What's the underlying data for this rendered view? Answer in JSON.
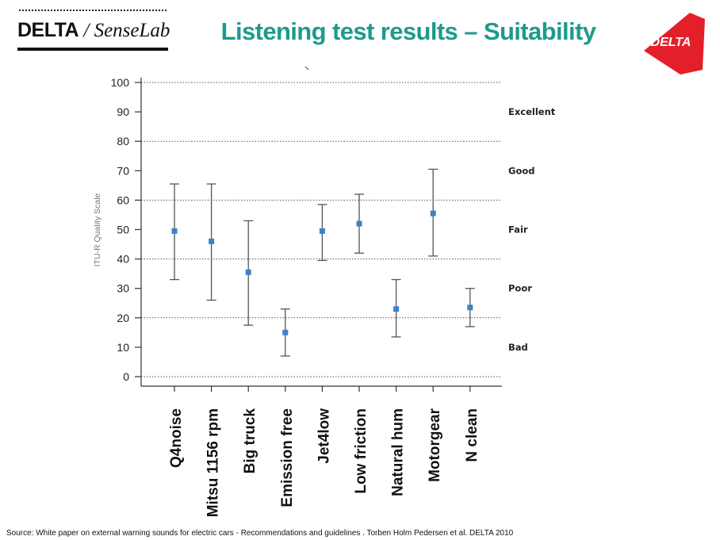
{
  "header": {
    "logo_left_bold": "DELTA",
    "logo_left_italic": " / SenseLab",
    "title": "Listening test results – Suitability",
    "logo_right_text": "DELTA"
  },
  "colors": {
    "title": "#1e9a8c",
    "marker": "#3b83c4",
    "logo_red": "#e3202a"
  },
  "chart_data": {
    "type": "scatter",
    "title": "",
    "xlabel": "",
    "ylabel": "ITU-R Quality Scale",
    "ylim": [
      0,
      100
    ],
    "yticks": [
      0,
      10,
      20,
      30,
      40,
      50,
      60,
      70,
      80,
      90,
      100
    ],
    "categories": [
      "Q4noise",
      "Mitsu 1156 rpm",
      "Big truck",
      "Emission free",
      "Jet4low",
      "Low friction",
      "Natural hum",
      "Motorgear",
      "N clean"
    ],
    "mean": [
      49.5,
      46,
      35.5,
      15,
      49.5,
      52,
      23,
      55.5,
      23.5
    ],
    "lower": [
      33,
      26,
      17.5,
      7,
      39.5,
      42,
      13.5,
      41,
      17
    ],
    "upper": [
      65.5,
      65.5,
      53,
      23,
      58.5,
      62,
      33,
      70.5,
      30
    ],
    "quality_labels": [
      {
        "label": "Excellent",
        "y": 90
      },
      {
        "label": "Good",
        "y": 70
      },
      {
        "label": "Fair",
        "y": 50
      },
      {
        "label": "Poor",
        "y": 30
      },
      {
        "label": "Bad",
        "y": 10
      }
    ],
    "reference_lines": [
      0,
      20,
      40,
      60,
      80,
      100
    ]
  },
  "footer": {
    "source": "Source: White paper on external warning sounds for electric cars  - Recommendations and guidelines . Torben Holm Pedersen et al. DELTA 2010"
  }
}
